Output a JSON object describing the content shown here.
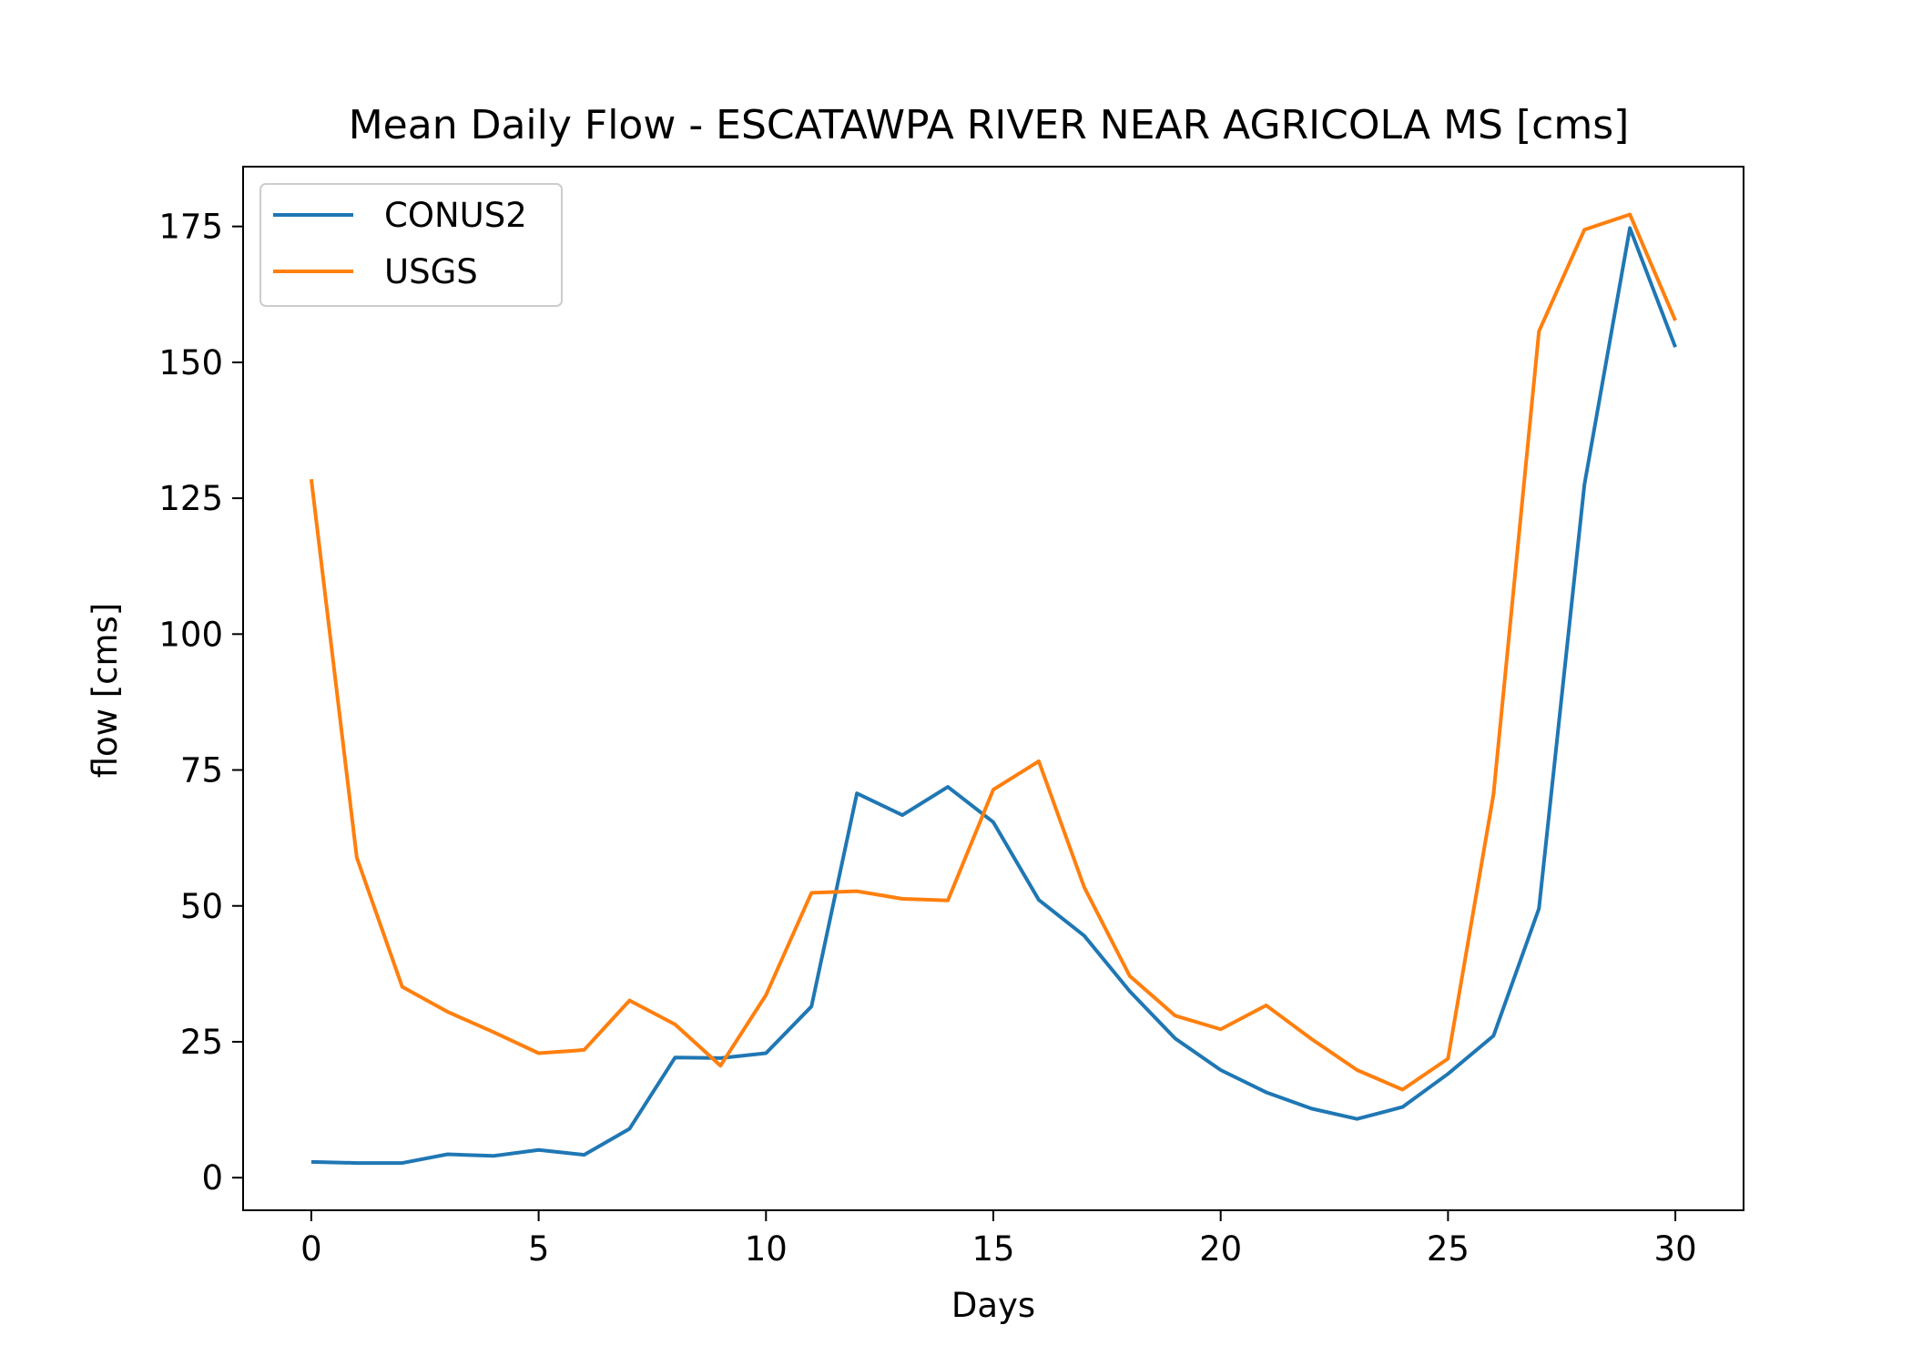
{
  "chart_data": {
    "type": "line",
    "title": "Mean Daily Flow - ESCATAWPA RIVER NEAR AGRICOLA MS [cms]",
    "xlabel": "Days",
    "ylabel": "flow [cms]",
    "xlim": [
      -1.5,
      31.5
    ],
    "ylim": [
      -6,
      186
    ],
    "xticks": [
      0,
      5,
      10,
      15,
      20,
      25,
      30
    ],
    "xtick_labels": [
      "0",
      "5",
      "10",
      "15",
      "20",
      "25",
      "30"
    ],
    "yticks": [
      0,
      25,
      50,
      75,
      100,
      125,
      150,
      175
    ],
    "ytick_labels": [
      "0",
      "25",
      "50",
      "75",
      "100",
      "125",
      "150",
      "175"
    ],
    "grid": false,
    "legend_position": "top-left",
    "x": [
      0,
      1,
      2,
      3,
      4,
      5,
      6,
      7,
      8,
      9,
      10,
      11,
      12,
      13,
      14,
      15,
      16,
      17,
      18,
      19,
      20,
      21,
      22,
      23,
      24,
      25,
      26,
      27,
      28,
      29,
      30
    ],
    "series": [
      {
        "name": "CONUS2",
        "color": "#1f77b4",
        "values": [
          2.9,
          2.7,
          2.7,
          4.3,
          4.0,
          5.1,
          4.2,
          9.0,
          22.1,
          22.0,
          22.9,
          31.5,
          70.7,
          66.7,
          71.9,
          65.4,
          51.1,
          44.5,
          34.3,
          25.6,
          19.8,
          15.7,
          12.7,
          10.8,
          13.0,
          19.1,
          26.1,
          49.5,
          127.5,
          174.7,
          152.8
        ]
      },
      {
        "name": "USGS",
        "color": "#ff7f0e",
        "values": [
          128.5,
          58.9,
          35.1,
          30.5,
          26.8,
          22.9,
          23.5,
          32.6,
          28.2,
          20.6,
          33.6,
          52.4,
          52.7,
          51.3,
          51.0,
          71.4,
          76.6,
          53.4,
          37.1,
          29.8,
          27.3,
          31.7,
          25.5,
          19.8,
          16.2,
          21.9,
          70.5,
          155.7,
          174.4,
          177.2,
          157.7
        ]
      }
    ]
  }
}
